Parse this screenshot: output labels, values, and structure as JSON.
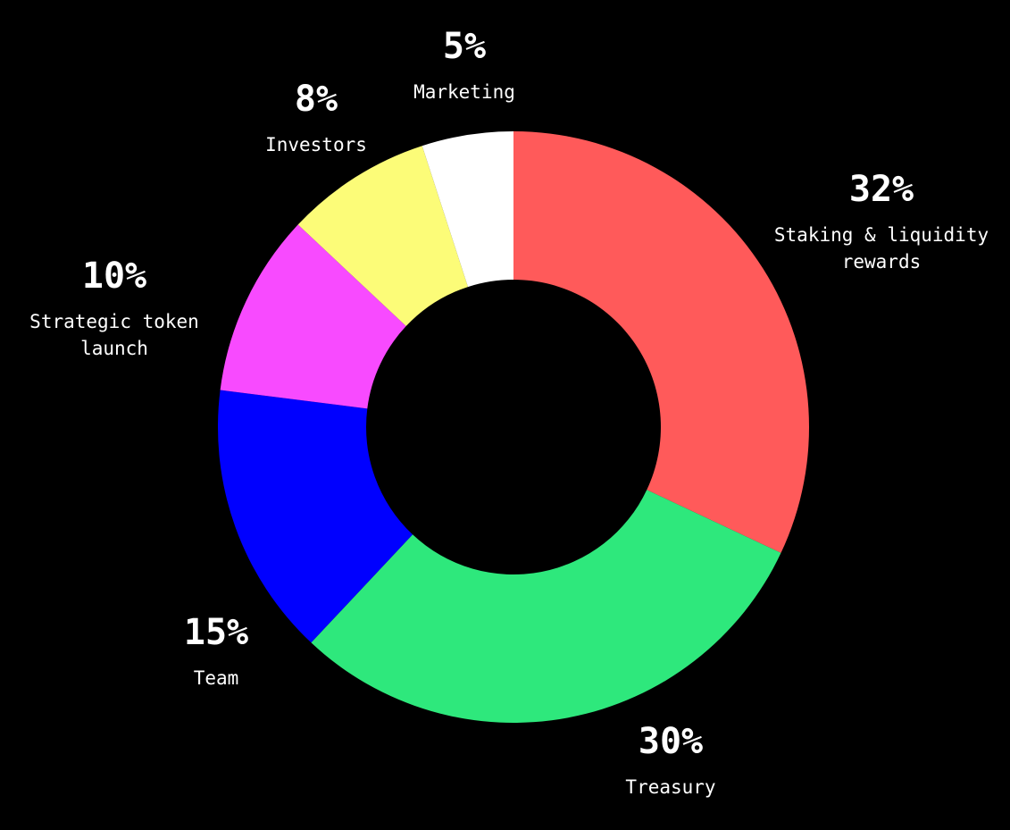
{
  "chart_data": {
    "type": "pie",
    "variant": "donut",
    "title": "",
    "background": "#000000",
    "slices": [
      {
        "label": "Staking & liquidity rewards",
        "label_lines": [
          "Staking & liquidity",
          "rewards"
        ],
        "value": 32,
        "display": "32%",
        "color": "#ff5a5a"
      },
      {
        "label": "Treasury",
        "label_lines": [
          "Treasury"
        ],
        "value": 30,
        "display": "30%",
        "color": "#2ee87c"
      },
      {
        "label": "Team",
        "label_lines": [
          "Team"
        ],
        "value": 15,
        "display": "15%",
        "color": "#0000ff"
      },
      {
        "label": "Strategic token launch",
        "label_lines": [
          "Strategic token",
          "launch"
        ],
        "value": 10,
        "display": "10%",
        "color": "#f84aff"
      },
      {
        "label": "Investors",
        "label_lines": [
          "Investors"
        ],
        "value": 8,
        "display": "8%",
        "color": "#fcfc78"
      },
      {
        "label": "Marketing",
        "label_lines": [
          "Marketing"
        ],
        "value": 5,
        "display": "5%",
        "color": "#ffffff"
      }
    ]
  }
}
